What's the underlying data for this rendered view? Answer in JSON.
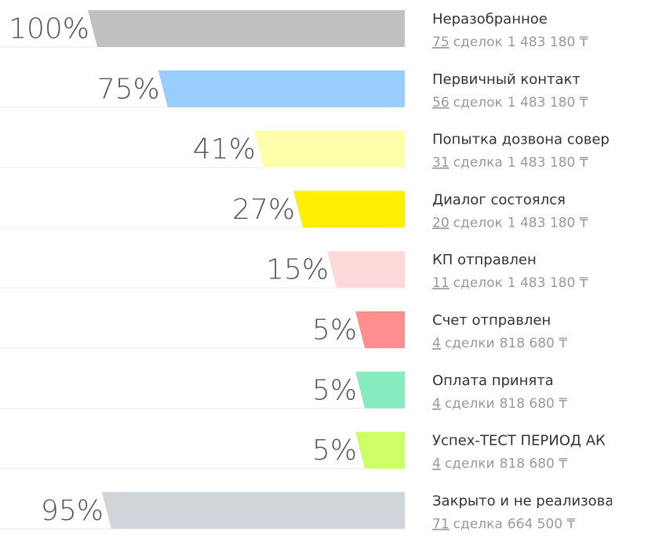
{
  "chart_data": {
    "type": "funnel",
    "categories": [
      "Неразобранное",
      "Первичный контакт",
      "Попытка дозвона совер",
      "Диалог состоялся",
      "КП отправлен",
      "Счет отправлен",
      "Оплата принята",
      "Успех-ТЕСТ ПЕРИОД АК",
      "Закрыто и не реализова"
    ],
    "values": [
      100,
      75,
      41,
      27,
      15,
      5,
      5,
      5,
      95
    ],
    "value_labels": [
      "100%",
      "75%",
      "41%",
      "27%",
      "15%",
      "5%",
      "5%",
      "5%",
      "95%"
    ],
    "colors": [
      "#c0c0c0",
      "#99ccff",
      "#ffffaa",
      "#fff000",
      "#ffd9d9",
      "#ff8f8f",
      "#87edc0",
      "#ccff66",
      "#d0d5d9"
    ],
    "counts": [
      75,
      56,
      31,
      20,
      11,
      4,
      4,
      4,
      71
    ],
    "count_units": [
      "сделок",
      "сделок",
      "сделка",
      "сделок",
      "сделок",
      "сделки",
      "сделки",
      "сделки",
      "сделка"
    ],
    "sums": [
      "1 483 180 ₸",
      "1 483 180 ₸",
      "1 483 180 ₸",
      "1 483 180 ₸",
      "1 483 180 ₸",
      "818 680 ₸",
      "818 680 ₸",
      "818 680 ₸",
      "664 500 ₸"
    ]
  }
}
